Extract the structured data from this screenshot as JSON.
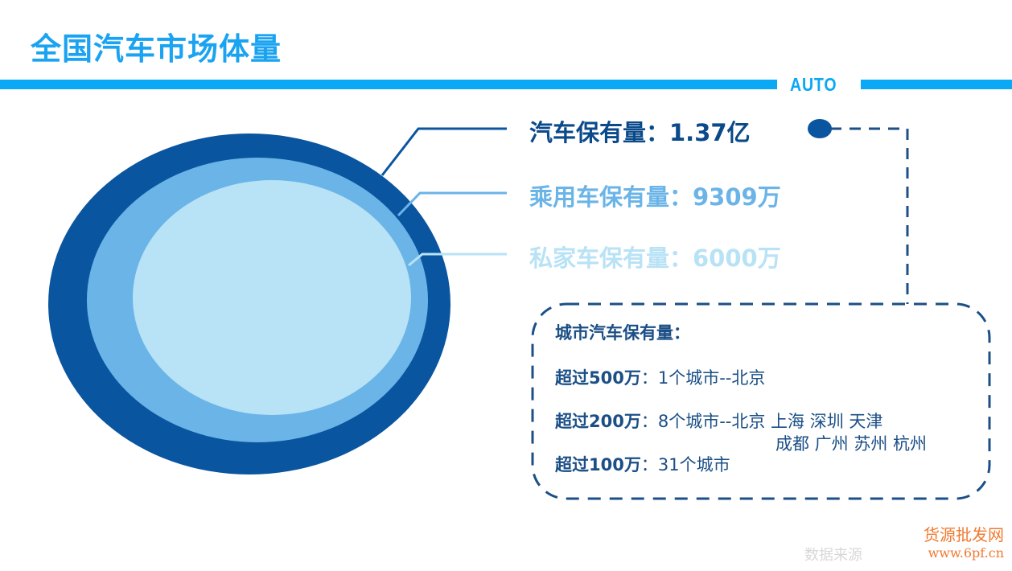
{
  "title": "全国汽车市场体量",
  "tag": "AUTO",
  "rings": [
    {
      "label": "汽车保有量：1.37亿",
      "color": "#0a55a0"
    },
    {
      "label": "乘用车保有量：9309万",
      "color": "#6ab4e8"
    },
    {
      "label": "私家车保有量：6000万",
      "color": "#b8e2f5"
    }
  ],
  "city_box": {
    "heading": "城市汽车保有量：",
    "rows": [
      {
        "threshold": "超过500万",
        "detail": "：1个城市--北京"
      },
      {
        "threshold": "超过200万",
        "detail": "：8个城市--北京  上海  深圳  天津",
        "detail2": "成都  广州  苏州  杭州"
      },
      {
        "threshold": "超过100万",
        "detail": "：31个城市"
      }
    ]
  },
  "watermark": {
    "line1": "货源批发网",
    "line2": "www.6pf.cn",
    "source": "数据来源"
  }
}
